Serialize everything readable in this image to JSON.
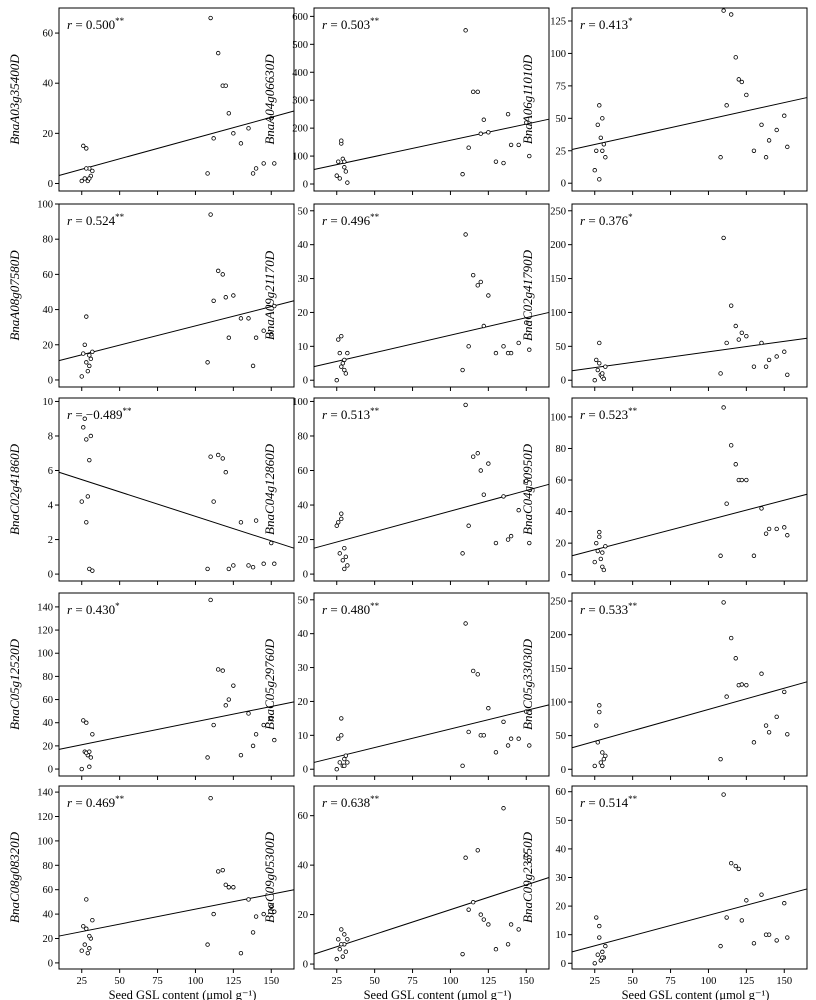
{
  "x_axis_label": "Seed GSL content (μmol g⁻¹)",
  "x_ticks": [
    25,
    50,
    75,
    100,
    125,
    150
  ],
  "xlim": [
    10,
    165
  ],
  "x_values": [
    26,
    27,
    28,
    29,
    30,
    31,
    32,
    25,
    28,
    30,
    110,
    115,
    118,
    120,
    125,
    130,
    135,
    140,
    145,
    150,
    108,
    112,
    122,
    138,
    152
  ],
  "chart_data": [
    {
      "type": "scatter",
      "gene": "BnaA03g35400D",
      "r": "r = 0.500",
      "sig": "**",
      "ylim": [
        -3,
        70
      ],
      "yticks": [
        0,
        20,
        40,
        60
      ],
      "y": [
        15,
        2,
        14,
        1,
        6,
        3,
        5,
        1,
        6,
        2,
        66,
        52,
        39,
        39,
        20,
        16,
        22,
        6,
        8,
        26,
        4,
        18,
        28,
        4,
        8
      ],
      "fit": [
        [
          10,
          3.2
        ],
        [
          165,
          28.9
        ]
      ]
    },
    {
      "type": "scatter",
      "gene": "BnaA04g06630D",
      "r": "r = 0.503",
      "sig": "**",
      "ylim": [
        -25,
        630
      ],
      "yticks": [
        0,
        100,
        200,
        300,
        400,
        500,
        600
      ],
      "y": [
        80,
        20,
        145,
        90,
        60,
        45,
        5,
        30,
        155,
        80,
        550,
        330,
        330,
        180,
        185,
        80,
        75,
        140,
        140,
        220,
        35,
        130,
        230,
        250,
        100
      ],
      "fit": [
        [
          10,
          52
        ],
        [
          165,
          232
        ]
      ]
    },
    {
      "type": "scatter",
      "gene": "BnaA06g11010D",
      "r": "r = 0.413",
      "sig": "*",
      "ylim": [
        -6,
        135
      ],
      "yticks": [
        0,
        25,
        50,
        75,
        100,
        125
      ],
      "y": [
        25,
        45,
        60,
        35,
        50,
        30,
        20,
        10,
        3,
        25,
        133,
        130,
        97,
        80,
        68,
        25,
        45,
        33,
        41,
        52,
        20,
        60,
        78,
        20,
        28
      ],
      "fit": [
        [
          10,
          26
        ],
        [
          165,
          66
        ]
      ]
    },
    {
      "type": "scatter",
      "gene": "BnaA08g07580D",
      "r": "r = 0.524",
      "sig": "**",
      "ylim": [
        -4,
        100
      ],
      "yticks": [
        0,
        20,
        40,
        60,
        80,
        100
      ],
      "y": [
        15,
        20,
        36,
        5,
        8,
        12,
        16,
        2,
        10,
        14,
        94,
        62,
        60,
        47,
        48,
        35,
        35,
        24,
        28,
        26,
        10,
        45,
        24,
        8,
        42
      ],
      "fit": [
        [
          10,
          11
        ],
        [
          165,
          45
        ]
      ]
    },
    {
      "type": "scatter",
      "gene": "BnaA09g21170D",
      "r": "r = 0.496",
      "sig": "**",
      "ylim": [
        -2,
        52
      ],
      "yticks": [
        0,
        10,
        20,
        30,
        40,
        50
      ],
      "y": [
        12,
        8,
        13,
        5,
        3,
        2,
        8,
        0,
        4,
        6,
        43,
        31,
        28,
        29,
        25,
        8,
        10,
        8,
        11,
        17,
        3,
        10,
        16,
        8,
        9
      ],
      "fit": [
        [
          10,
          4
        ],
        [
          165,
          20
        ]
      ]
    },
    {
      "type": "scatter",
      "gene": "BnaC02g41790D",
      "r": "r = 0.376",
      "sig": "*",
      "ylim": [
        -10,
        260
      ],
      "yticks": [
        0,
        50,
        100,
        150,
        200,
        250
      ],
      "y": [
        30,
        15,
        55,
        8,
        5,
        2,
        20,
        0,
        25,
        10,
        210,
        110,
        80,
        60,
        65,
        20,
        55,
        30,
        35,
        42,
        10,
        55,
        70,
        20,
        8
      ],
      "fit": [
        [
          10,
          14
        ],
        [
          165,
          62
        ]
      ]
    },
    {
      "type": "scatter",
      "gene": "BnaC02g41860D",
      "r": "r = −0.489",
      "sig": "**",
      "ylim": [
        -0.4,
        10.2
      ],
      "yticks": [
        0,
        2,
        4,
        6,
        8,
        10
      ],
      "y": [
        8.5,
        9.0,
        3.0,
        4.5,
        6.6,
        8.0,
        0.2,
        4.2,
        7.8,
        0.3,
        6.8,
        6.9,
        6.7,
        5.9,
        0.5,
        3.0,
        0.5,
        3.1,
        0.6,
        1.8,
        0.3,
        4.2,
        0.3,
        0.4,
        0.6
      ],
      "fit": [
        [
          10,
          5.9
        ],
        [
          165,
          1.5
        ]
      ]
    },
    {
      "type": "scatter",
      "gene": "BnaC04g12860D",
      "r": "r = 0.513",
      "sig": "**",
      "ylim": [
        -4,
        102
      ],
      "yticks": [
        0,
        20,
        40,
        60,
        80,
        100
      ],
      "y": [
        30,
        12,
        35,
        8,
        3,
        10,
        5,
        28,
        32,
        15,
        98,
        68,
        70,
        60,
        64,
        18,
        45,
        22,
        37,
        54,
        12,
        28,
        46,
        20,
        18
      ],
      "fit": [
        [
          10,
          15
        ],
        [
          165,
          52
        ]
      ]
    },
    {
      "type": "scatter",
      "gene": "BnaC04g50950D",
      "r": "r = 0.523",
      "sig": "**",
      "ylim": [
        -4,
        112
      ],
      "yticks": [
        0,
        20,
        40,
        60,
        80,
        100
      ],
      "y": [
        20,
        15,
        27,
        10,
        5,
        3,
        18,
        8,
        24,
        14,
        106,
        82,
        70,
        60,
        60,
        12,
        42,
        29,
        29,
        30,
        12,
        45,
        60,
        26,
        25
      ],
      "fit": [
        [
          10,
          12
        ],
        [
          165,
          51
        ]
      ]
    },
    {
      "type": "scatter",
      "gene": "BnaC05g12520D",
      "r": "r = 0.430",
      "sig": "*",
      "ylim": [
        -6,
        152
      ],
      "yticks": [
        0,
        20,
        40,
        60,
        80,
        100,
        120,
        140
      ],
      "y": [
        42,
        15,
        40,
        12,
        2,
        10,
        30,
        0,
        14,
        15,
        146,
        86,
        85,
        55,
        72,
        12,
        48,
        30,
        38,
        44,
        10,
        38,
        60,
        20,
        25
      ],
      "fit": [
        [
          10,
          17
        ],
        [
          165,
          58
        ]
      ]
    },
    {
      "type": "scatter",
      "gene": "BnaC05g29760D",
      "r": "r = 0.480",
      "sig": "**",
      "ylim": [
        -2,
        52
      ],
      "yticks": [
        0,
        10,
        20,
        30,
        40,
        50
      ],
      "y": [
        9,
        2,
        15,
        1,
        3,
        4,
        2,
        0,
        10,
        1,
        43,
        29,
        28,
        10,
        18,
        5,
        14,
        9,
        9,
        17,
        1,
        11,
        10,
        7,
        7
      ],
      "fit": [
        [
          10,
          2
        ],
        [
          165,
          19
        ]
      ]
    },
    {
      "type": "scatter",
      "gene": "BnaC05g33030D",
      "r": "r = 0.533",
      "sig": "**",
      "ylim": [
        -10,
        262
      ],
      "yticks": [
        0,
        50,
        100,
        150,
        200,
        250
      ],
      "y": [
        65,
        40,
        95,
        10,
        5,
        15,
        20,
        5,
        85,
        25,
        248,
        195,
        165,
        125,
        125,
        40,
        142,
        55,
        78,
        115,
        15,
        108,
        126,
        65,
        52
      ],
      "fit": [
        [
          10,
          32
        ],
        [
          165,
          130
        ]
      ]
    },
    {
      "type": "scatter",
      "gene": "BnaC08g08320D",
      "r": "r = 0.469",
      "sig": "**",
      "ylim": [
        -5,
        145
      ],
      "yticks": [
        0,
        20,
        40,
        60,
        80,
        100,
        120,
        140
      ],
      "y": [
        30,
        15,
        52,
        8,
        12,
        20,
        35,
        10,
        28,
        22,
        135,
        75,
        76,
        64,
        62,
        8,
        52,
        38,
        40,
        46,
        15,
        40,
        62,
        25,
        42
      ],
      "fit": [
        [
          10,
          22
        ],
        [
          165,
          60
        ]
      ]
    },
    {
      "type": "scatter",
      "gene": "BnaC09g05300D",
      "r": "r = 0.638",
      "sig": "**",
      "ylim": [
        -2,
        72
      ],
      "yticks": [
        0,
        20,
        40,
        60
      ],
      "y": [
        10,
        6,
        14,
        3,
        8,
        5,
        10,
        2,
        8,
        12,
        43,
        25,
        46,
        20,
        16,
        6,
        63,
        16,
        14,
        44,
        4,
        22,
        18,
        8,
        42
      ],
      "fit": [
        [
          10,
          4
        ],
        [
          165,
          35
        ]
      ]
    },
    {
      "type": "scatter",
      "gene": "BnaC09g23550D",
      "r": "r = 0.514",
      "sig": "**",
      "ylim": [
        -2,
        62
      ],
      "yticks": [
        0,
        10,
        20,
        30,
        40,
        50,
        60
      ],
      "y": [
        16,
        3,
        13,
        1,
        4,
        2,
        6,
        0,
        9,
        2,
        59,
        35,
        34,
        33,
        22,
        7,
        24,
        10,
        8,
        21,
        6,
        16,
        15,
        10,
        9
      ],
      "fit": [
        [
          10,
          4
        ],
        [
          165,
          26
        ]
      ]
    }
  ]
}
